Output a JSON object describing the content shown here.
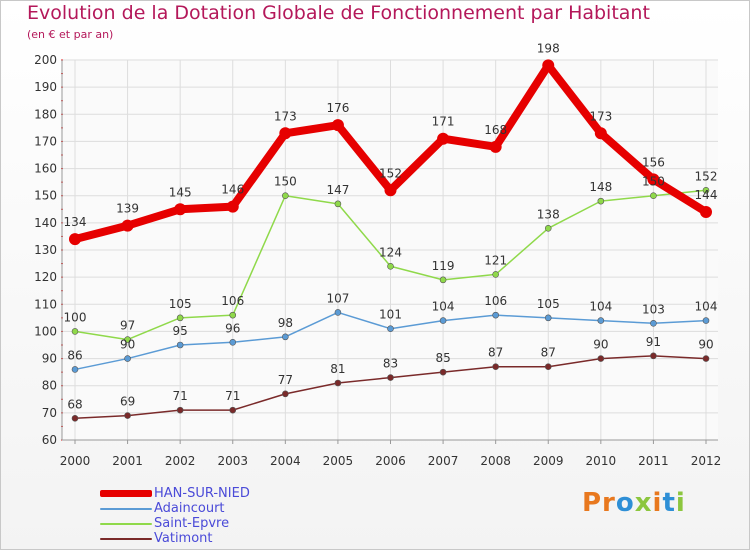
{
  "header": {
    "title": "Evolution de la Dotation Globale de Fonctionnement par Habitant",
    "subtitle": "(en € et par an)"
  },
  "logo": {
    "text": "Proxiti"
  },
  "chart_data": {
    "type": "line",
    "x": [
      "2000",
      "2001",
      "2002",
      "2003",
      "2004",
      "2005",
      "2006",
      "2007",
      "2008",
      "2009",
      "2010",
      "2011",
      "2012"
    ],
    "ylim": [
      60,
      200
    ],
    "yticks": [
      60,
      70,
      80,
      90,
      100,
      110,
      120,
      130,
      140,
      150,
      160,
      170,
      180,
      190,
      200
    ],
    "grid": true,
    "legend_position": "bottom-left",
    "series": [
      {
        "name": "HAN-SUR-NIED",
        "color": "#e60000",
        "values": [
          134,
          139,
          145,
          146,
          173,
          176,
          152,
          171,
          168,
          198,
          173,
          156,
          144
        ]
      },
      {
        "name": "Adaincourt",
        "color": "#5b9bd5",
        "values": [
          86,
          90,
          95,
          96,
          98,
          107,
          101,
          104,
          106,
          105,
          104,
          103,
          104
        ]
      },
      {
        "name": "Saint-Epvre",
        "color": "#8fd94a",
        "values": [
          100,
          97,
          105,
          106,
          150,
          147,
          124,
          119,
          121,
          138,
          148,
          150,
          152
        ]
      },
      {
        "name": "Vatimont",
        "color": "#7a2a2a",
        "values": [
          68,
          69,
          71,
          71,
          77,
          81,
          83,
          85,
          87,
          87,
          90,
          91,
          90
        ]
      }
    ]
  }
}
